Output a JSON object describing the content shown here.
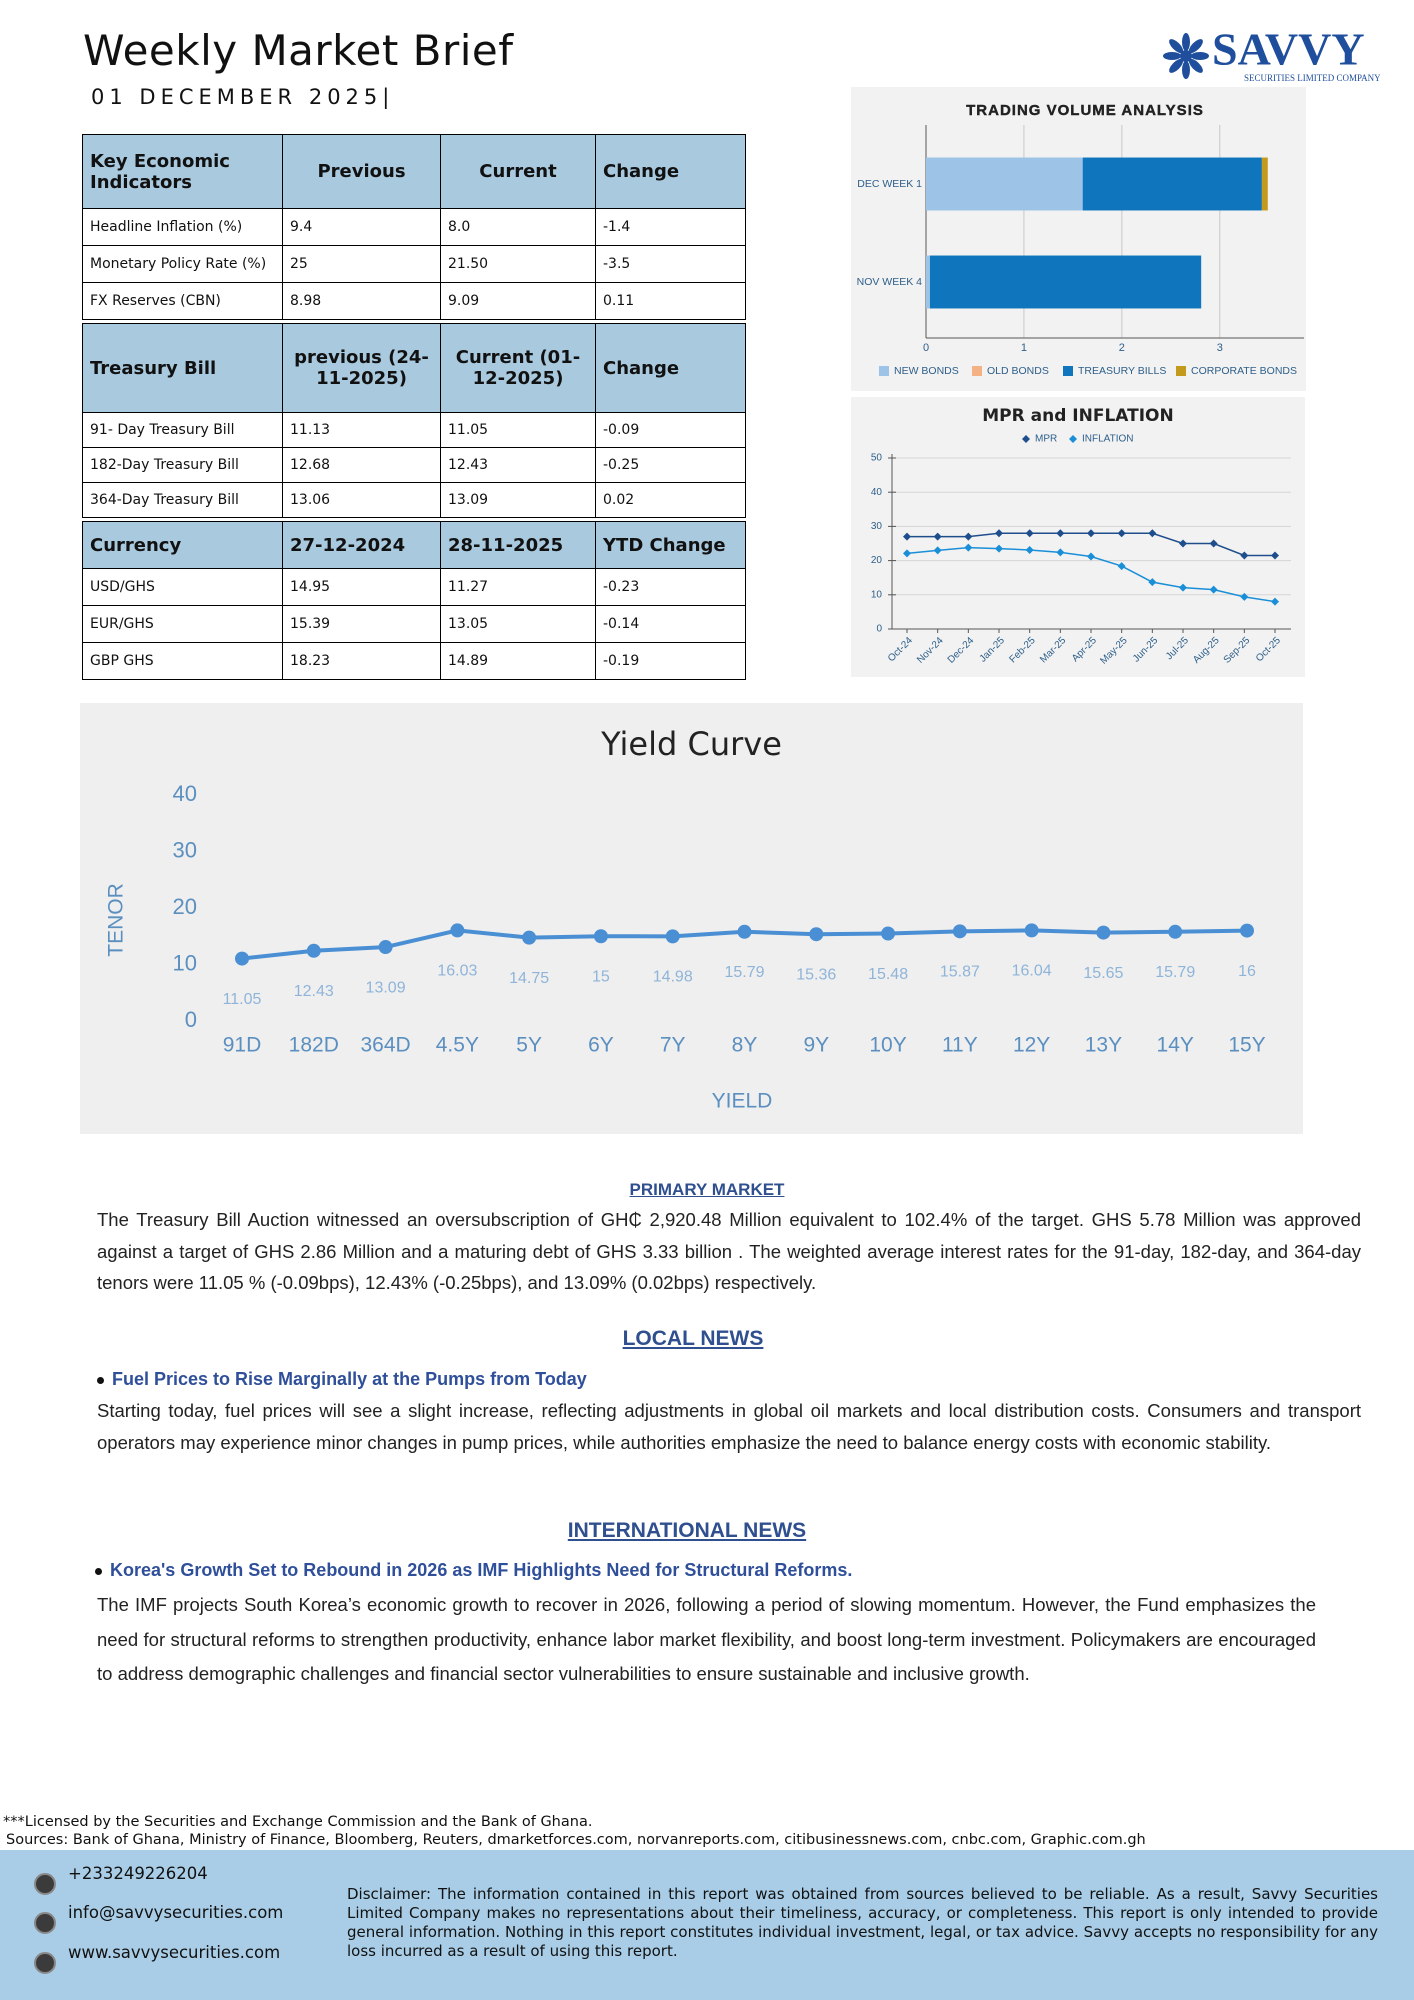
{
  "header": {
    "title": "Weekly Market Brief",
    "date": "01 DECEMBER 2025|",
    "logo": {
      "name": "SAVVY",
      "tagline": "SECURITIES LIMITED COMPANY"
    }
  },
  "tables": [
    {
      "header": [
        "Key Economic Indicators",
        "Previous",
        "Current",
        "Change"
      ],
      "rows": [
        [
          "Headline Inflation (%)",
          "9.4",
          "8.0",
          "-1.4"
        ],
        [
          "Monetary Policy Rate (%)",
          "25",
          "21.50",
          "-3.5"
        ],
        [
          "FX Reserves (CBN)",
          "8.98",
          "9.09",
          "0.11"
        ]
      ]
    },
    {
      "header": [
        "Treasury Bill",
        "previous (24-11-2025)",
        "Current (01-12-2025)",
        "Change"
      ],
      "rows": [
        [
          "91- Day Treasury Bill",
          "11.13",
          "11.05",
          "-0.09"
        ],
        [
          "182-Day Treasury Bill",
          "12.68",
          "12.43",
          "-0.25"
        ],
        [
          "364-Day Treasury Bill",
          "13.06",
          "13.09",
          "0.02"
        ]
      ]
    },
    {
      "header": [
        "Currency",
        "27-12-2024",
        "28-11-2025",
        "YTD Change"
      ],
      "rows": [
        [
          "USD/GHS",
          "14.95",
          "11.27",
          "-0.23"
        ],
        [
          "EUR/GHS",
          "15.39",
          "13.05",
          "-0.14"
        ],
        [
          "GBP GHS",
          "18.23",
          "14.89",
          "-0.19"
        ]
      ]
    }
  ],
  "chart_data": [
    {
      "type": "bar",
      "orientation": "horizontal",
      "stacked": true,
      "title": "TRADING VOLUME ANALYSIS",
      "categories": [
        "DEC WEEK 1",
        "NOV WEEK 4"
      ],
      "series": [
        {
          "name": "NEW BONDS",
          "color": "#9dc3e6",
          "values": [
            1.6,
            0.04
          ]
        },
        {
          "name": "OLD BONDS",
          "color": "#f4b183",
          "values": [
            0,
            0
          ]
        },
        {
          "name": "TREASURY BILLS",
          "color": "#0f75bc",
          "values": [
            1.83,
            2.77
          ]
        },
        {
          "name": "CORPORATE BONDS",
          "color": "#c39a1b",
          "values": [
            0.06,
            0
          ]
        }
      ],
      "xlim": [
        0,
        3.86
      ],
      "xticks": [
        0,
        1,
        2,
        3
      ],
      "grid": true,
      "legend": "bottom"
    },
    {
      "type": "line",
      "title": "MPR and INFLATION",
      "marker": "diamond",
      "categories": [
        "Oct-24",
        "Nov-24",
        "Dec-24",
        "Jan-25",
        "Feb-25",
        "Mar-25",
        "Apr-25",
        "May-25",
        "Jun-25",
        "Jul-25",
        "Aug-25",
        "Sep-25",
        "Oct-25"
      ],
      "series": [
        {
          "name": "MPR",
          "color": "#1f4e8c",
          "values": [
            27,
            27,
            27,
            28,
            28,
            28,
            28,
            28,
            28,
            25,
            25,
            21.5,
            21.5
          ]
        },
        {
          "name": "INFLATION",
          "color": "#1a8fd8",
          "values": [
            22.1,
            23.0,
            23.8,
            23.5,
            23.1,
            22.4,
            21.2,
            18.4,
            13.7,
            12.1,
            11.5,
            9.4,
            8.0
          ]
        }
      ],
      "ylim": [
        0,
        50
      ],
      "yticks": [
        0,
        10,
        20,
        30,
        40,
        50
      ],
      "grid": true,
      "legend": "top"
    },
    {
      "type": "line",
      "title": "Yield Curve",
      "marker": "circle",
      "x_label": "YIELD",
      "y_label": "TENOR",
      "categories": [
        "91D",
        "182D",
        "364D",
        "4.5Y",
        "5Y",
        "6Y",
        "7Y",
        "8Y",
        "9Y",
        "10Y",
        "11Y",
        "12Y",
        "13Y",
        "14Y",
        "15Y"
      ],
      "values": [
        11.05,
        12.43,
        13.09,
        16.03,
        14.75,
        15,
        14.98,
        15.79,
        15.36,
        15.48,
        15.87,
        16.04,
        15.65,
        15.79,
        16
      ],
      "color": "#4a8fd4",
      "ylim": [
        0,
        40
      ],
      "yticks": [
        0,
        10,
        20,
        30,
        40
      ],
      "grid": false
    }
  ],
  "sections": {
    "primary_market": {
      "heading": "PRIMARY MARKET",
      "body": "The Treasury Bill Auction witnessed an oversubscription of GH₵ 2,920.48 Million equivalent to 102.4% of the target. GHS 5.78 Million was approved against a target of GHS 2.86 Million and a maturing debt of GHS 3.33 billion . The weighted average interest rates for the 91-day, 182-day, and 364-day tenors were 11.05 % (-0.09bps), 12.43% (-0.25bps), and 13.09%  (0.02bps) respectively."
    },
    "local_news": {
      "heading": "LOCAL NEWS",
      "headline": "Fuel Prices to Rise Marginally at the Pumps from Today",
      "body": "Starting today, fuel prices will see a slight increase, reflecting adjustments in global oil markets and local distribution costs. Consumers and transport operators may experience minor changes in pump prices, while authorities emphasize the need to balance energy costs with economic stability."
    },
    "international_news": {
      "heading": "INTERNATIONAL NEWS",
      "headline": "Korea's Growth Set to Rebound in 2026 as IMF Highlights Need for Structural Reforms.",
      "body": "The IMF projects South Korea’s economic growth to recover in 2026, following a period of slowing momentum. However, the Fund emphasizes the need for structural reforms to strengthen productivity, enhance labor market flexibility, and boost long-term investment. Policymakers are encouraged to address demographic challenges and financial sector vulnerabilities to ensure sustainable and inclusive growth."
    }
  },
  "footer": {
    "license": "***Licensed by the Securities and Exchange Commission and the Bank of Ghana.",
    "sources": "Sources: Bank of Ghana, Ministry of Finance, Bloomberg, Reuters, dmarketforces.com, norvanreports.com, citibusinessnews.com, cnbc.com, Graphic.com.gh",
    "phone": "+233249226204",
    "email": "info@savvysecurities.com",
    "website": "www.savvysecurities.com",
    "disclaimer": "Disclaimer: The information contained in this report was obtained from sources believed to be reliable. As a result, Savvy Securities Limited Company makes no representations about their timeliness, accuracy, or completeness. This report is only intended to provide general information. Nothing in this report constitutes individual investment, legal, or tax advice. Savvy accepts no responsibility for any loss incurred as a result of using this report."
  }
}
